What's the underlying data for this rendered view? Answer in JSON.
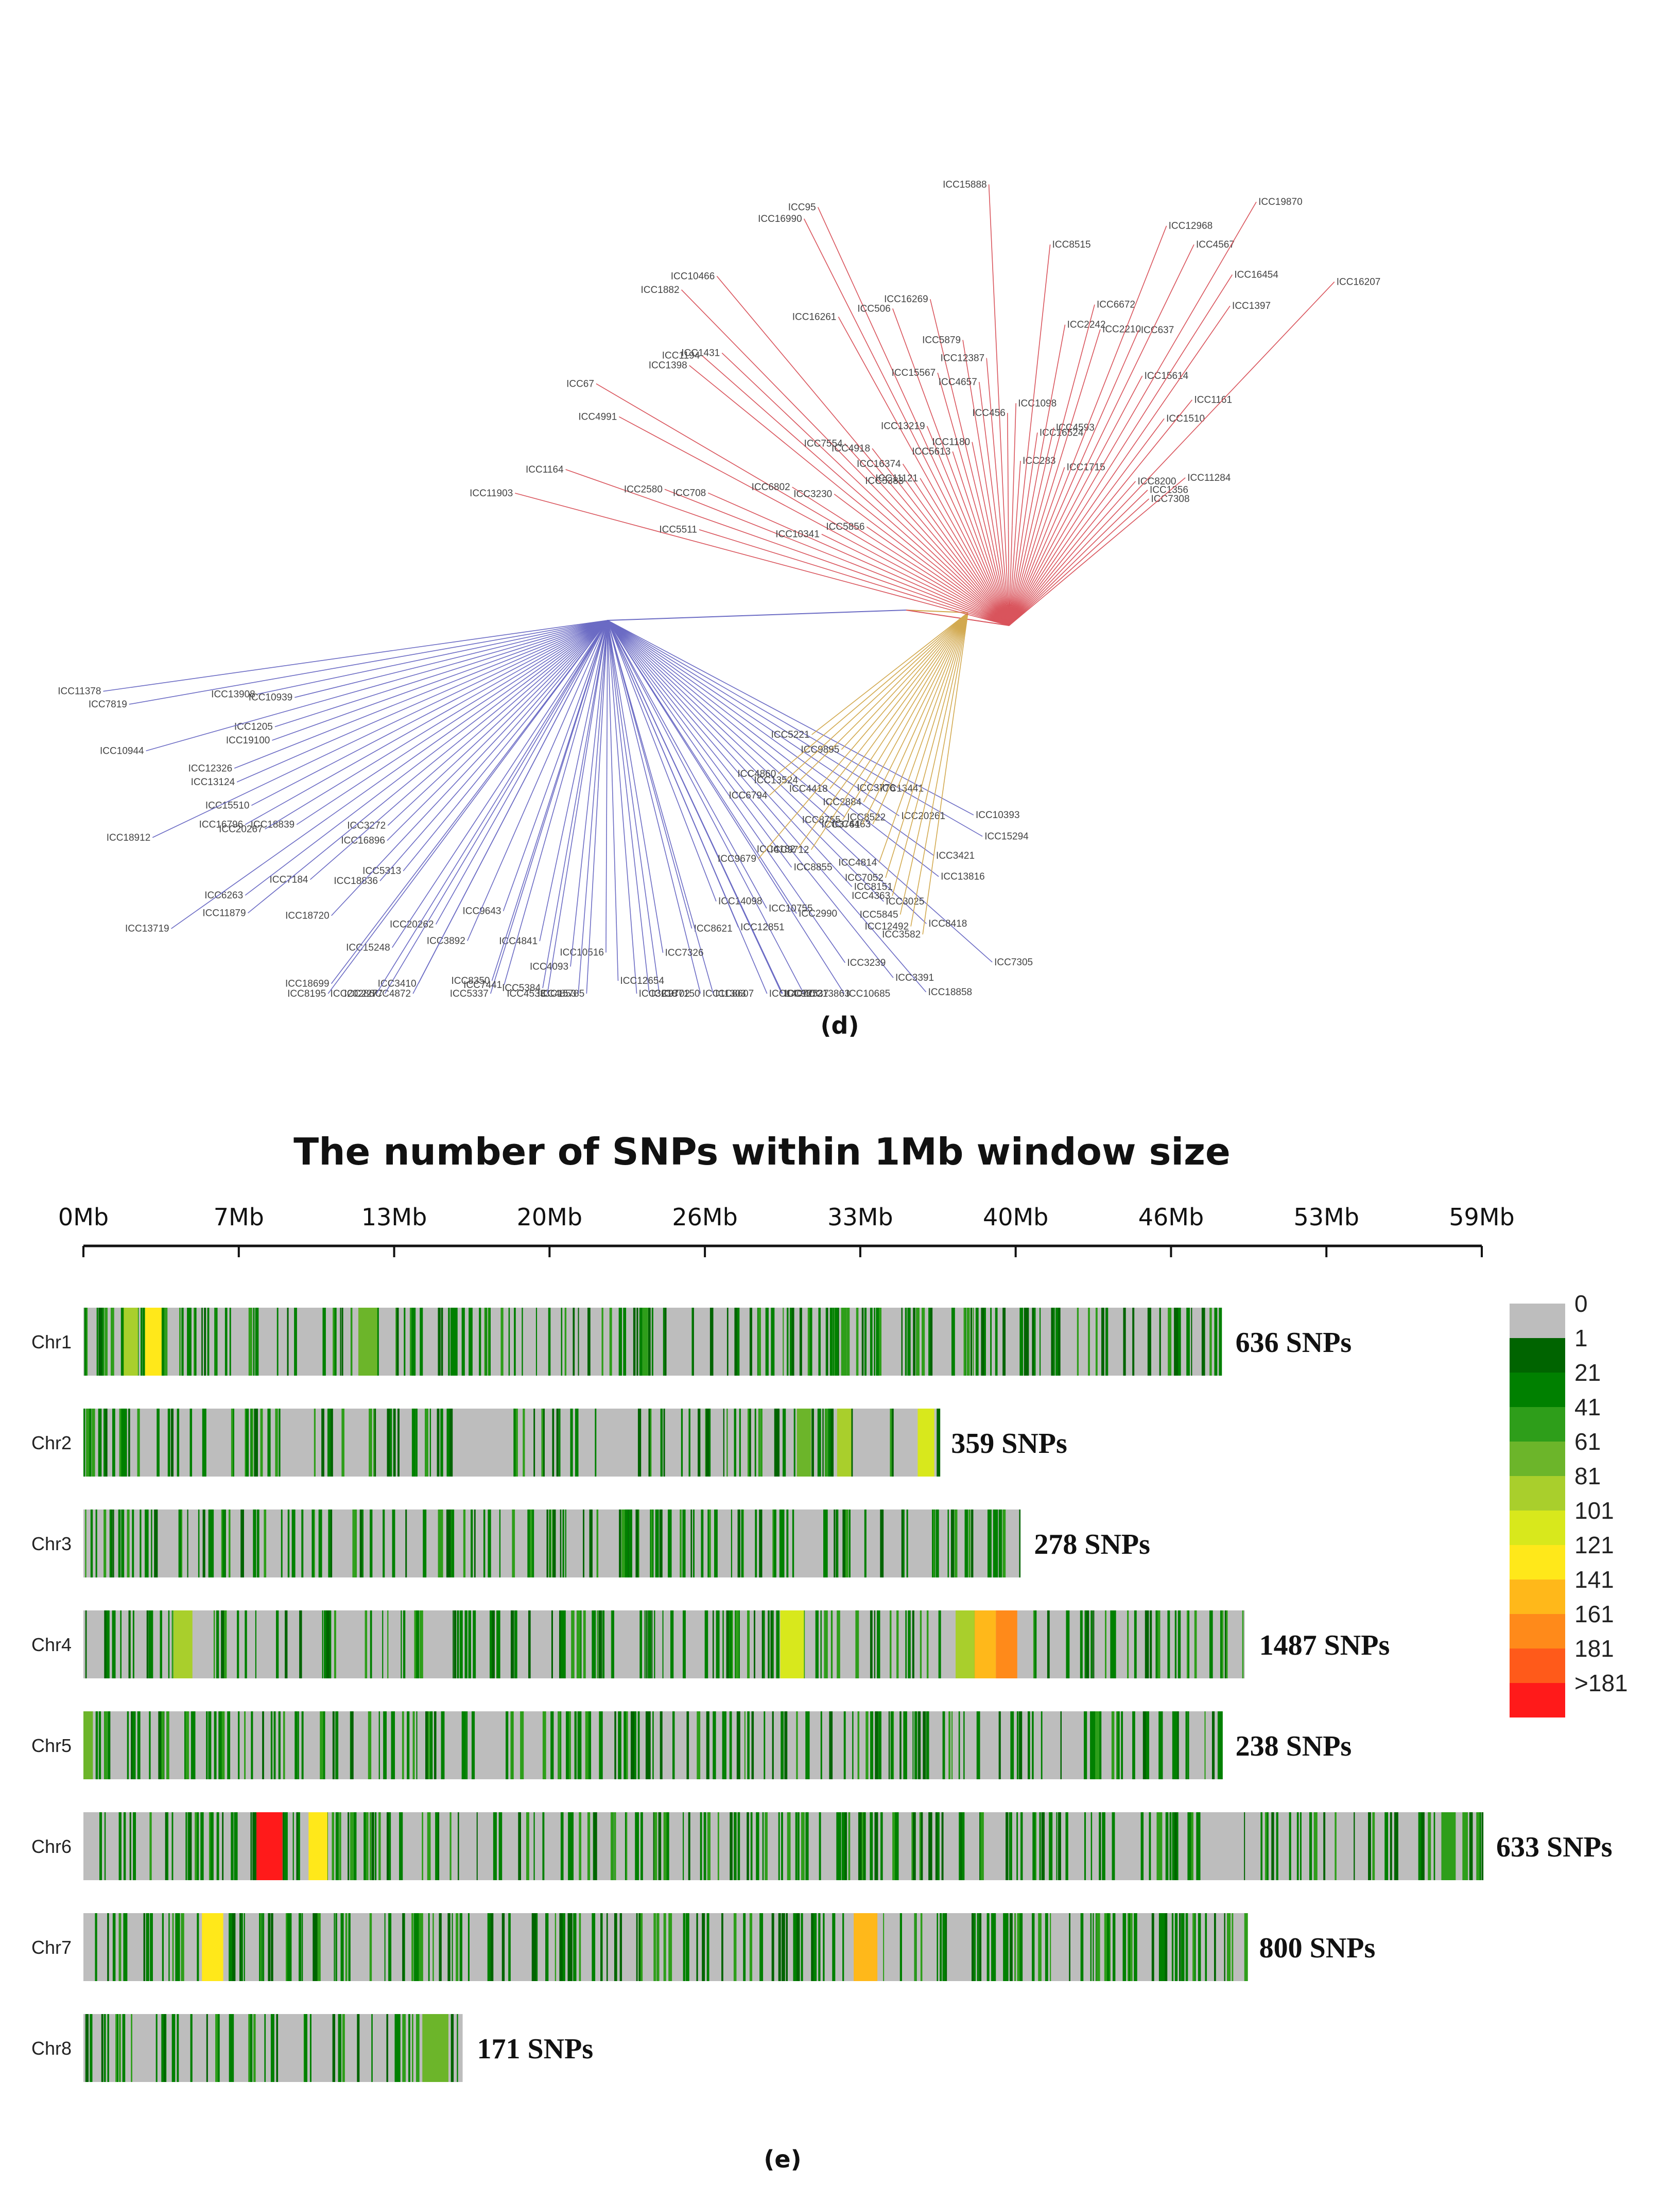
{
  "tree": {
    "panel_label": "(d)",
    "clades": [
      {
        "color": "#6b6bc4",
        "labels": [
          "ICC10393",
          "ICC15294",
          "ICC13441",
          "ICC20261",
          "ICC3421",
          "ICC13816",
          "ICC8522",
          "ICC7305",
          "ICC8418",
          "ICC3025",
          "ICC8151",
          "ICC18858",
          "ICC3391",
          "ICC8855",
          "ICC3239",
          "ICC2990",
          "ICC10685",
          "ICC10755",
          "ICC13863",
          "ICC12537",
          "ICC12851",
          "ICC14098",
          "ICC9872",
          "ICC14077",
          "ICC8621",
          "ICC11303",
          "ICC8607",
          "ICC7326",
          "ICC7150",
          "ICC9702",
          "ICC3218",
          "ICC12654",
          "ICC10516",
          "ICC15785",
          "ICC4853",
          "ICC4093",
          "ICC4533",
          "ICC5384",
          "ICC4841",
          "ICC5337",
          "ICC7441",
          "ICC8350",
          "ICC9643",
          "ICC4872",
          "ICC3892",
          "ICC2277",
          "ICC3410",
          "ICC20262",
          "ICC20286",
          "ICC15248",
          "ICC8195",
          "ICC18699",
          "ICC5313",
          "ICC18836",
          "ICC18720",
          "ICC16896",
          "ICC3272",
          "ICC7184",
          "ICC11879",
          "ICC6263",
          "ICC13719",
          "ICC18839",
          "ICC20267",
          "ICC16796",
          "ICC15510",
          "ICC18912",
          "ICC13124",
          "ICC12326",
          "ICC19100",
          "ICC1205",
          "ICC10944",
          "ICC10939",
          "ICC13908",
          "ICC7819",
          "ICC11378"
        ]
      },
      {
        "color": "#d2a94f",
        "labels": [
          "ICC3582",
          "ICC12492",
          "ICC5845",
          "ICC4363",
          "ICC7052",
          "ICC4814",
          "ICC3776",
          "ICC4463",
          "ICC3761",
          "ICC2884",
          "ICC8755",
          "ICC9712",
          "ICC4182",
          "ICC4418",
          "ICC9679",
          "ICC9895",
          "ICC13524",
          "ICC6794",
          "ICC4860",
          "ICC5221"
        ]
      },
      {
        "color": "#d9545c",
        "labels": [
          "ICC11903",
          "ICC5511",
          "ICC1164",
          "ICC2580",
          "ICC708",
          "ICC10341",
          "ICC4991",
          "ICC67",
          "ICC6802",
          "ICC5856",
          "ICC3230",
          "ICC1398",
          "ICC1194",
          "ICC1431",
          "ICC1882",
          "ICC7554",
          "ICC10466",
          "ICC4918",
          "ICC5383",
          "ICC16374",
          "ICC11121",
          "ICC16261",
          "ICC16990",
          "ICC95",
          "ICC13219",
          "ICC506",
          "ICC5613",
          "ICC15567",
          "ICC16269",
          "ICC1180",
          "ICC5879",
          "ICC4657",
          "ICC12387",
          "ICC15888",
          "ICC456",
          "ICC1098",
          "ICC283",
          "ICC8515",
          "ICC16524",
          "ICC2242",
          "ICC4593",
          "ICC6672",
          "ICC2210",
          "ICC1715",
          "ICC12968",
          "ICC637",
          "ICC4567",
          "ICC15614",
          "ICC19870",
          "ICC16454",
          "ICC1397",
          "ICC1510",
          "ICC1161",
          "ICC8200",
          "ICC16207",
          "ICC1356",
          "ICC7308",
          "ICC11284"
        ]
      }
    ]
  },
  "heatmap": {
    "panel_label": "(e)",
    "title": "The number of SNPs within 1Mb window size",
    "axis_ticks": [
      "0Mb",
      "7Mb",
      "13Mb",
      "20Mb",
      "26Mb",
      "33Mb",
      "40Mb",
      "46Mb",
      "53Mb",
      "59Mb"
    ],
    "legend": {
      "labels": [
        "0",
        "1",
        "21",
        "41",
        "61",
        "81",
        "101",
        "121",
        "141",
        "161",
        "181",
        ">181"
      ],
      "colors": [
        "#bdbdbd",
        "#006400",
        "#008000",
        "#2e9e1a",
        "#6cb52a",
        "#a9cf2c",
        "#d8e81c",
        "#ffe81a",
        "#ffb81a",
        "#ff8a1a",
        "#ff5a1a",
        "#ff1a1a"
      ]
    }
  },
  "chart_data": [
    {
      "type": "tree",
      "panel": "(d)",
      "title": "",
      "groups": [
        {
          "color": "blue",
          "taxa_count": 75
        },
        {
          "color": "yellow",
          "taxa_count": 20
        },
        {
          "color": "red",
          "taxa_count": 58
        }
      ]
    },
    {
      "type": "heatmap",
      "panel": "(e)",
      "title": "The number of SNPs within 1Mb window size",
      "x_axis_ticks": [
        "0Mb",
        "7Mb",
        "13Mb",
        "20Mb",
        "26Mb",
        "33Mb",
        "40Mb",
        "46Mb",
        "53Mb",
        "59Mb"
      ],
      "xlim_mb": [
        0,
        59
      ],
      "color_scale": [
        "0",
        "1",
        "21",
        "41",
        "61",
        "81",
        "101",
        "121",
        "141",
        "161",
        "181",
        ">181"
      ],
      "chromosomes": [
        {
          "name": "Chr1",
          "length_mb": 48,
          "total": "636 SNPs",
          "hotspots": [
            {
              "start_mb": 1.7,
              "end_mb": 2.3,
              "level": "81"
            },
            {
              "start_mb": 2.6,
              "end_mb": 3.3,
              "level": "121"
            },
            {
              "start_mb": 11.6,
              "end_mb": 12.4,
              "level": "61"
            }
          ]
        },
        {
          "name": "Chr2",
          "length_mb": 36,
          "total": "359 SNPs",
          "hotspots": [
            {
              "start_mb": 30.1,
              "end_mb": 30.7,
              "level": "61"
            },
            {
              "start_mb": 31.8,
              "end_mb": 32.4,
              "level": "81"
            },
            {
              "start_mb": 35.2,
              "end_mb": 35.9,
              "level": "101"
            }
          ]
        },
        {
          "name": "Chr3",
          "length_mb": 39.5,
          "total": "278 SNPs",
          "hotspots": []
        },
        {
          "name": "Chr4",
          "length_mb": 49,
          "total": "1487 SNPs",
          "hotspots": [
            {
              "start_mb": 3.8,
              "end_mb": 4.6,
              "level": "81"
            },
            {
              "start_mb": 29.4,
              "end_mb": 30.4,
              "level": "101"
            },
            {
              "start_mb": 36.8,
              "end_mb": 37.6,
              "level": "81"
            },
            {
              "start_mb": 37.6,
              "end_mb": 38.5,
              "level": "141"
            },
            {
              "start_mb": 38.5,
              "end_mb": 39.4,
              "level": "161"
            }
          ]
        },
        {
          "name": "Chr5",
          "length_mb": 48,
          "total": "238 SNPs",
          "hotspots": [
            {
              "start_mb": 0.0,
              "end_mb": 0.4,
              "level": "61"
            }
          ]
        },
        {
          "name": "Chr6",
          "length_mb": 59,
          "total": "633 SNPs",
          "hotspots": [
            {
              "start_mb": 7.3,
              "end_mb": 8.4,
              "level": ">181"
            },
            {
              "start_mb": 9.5,
              "end_mb": 10.3,
              "level": "121"
            },
            {
              "start_mb": 57.3,
              "end_mb": 57.9,
              "level": "41"
            }
          ]
        },
        {
          "name": "Chr7",
          "length_mb": 49,
          "total": "800 SNPs",
          "hotspots": [
            {
              "start_mb": 5.0,
              "end_mb": 5.9,
              "level": "121"
            },
            {
              "start_mb": 32.5,
              "end_mb": 33.5,
              "level": "141"
            }
          ]
        },
        {
          "name": "Chr8",
          "length_mb": 16,
          "total": "171 SNPs",
          "hotspots": [
            {
              "start_mb": 14.3,
              "end_mb": 15.4,
              "level": "61"
            }
          ]
        }
      ]
    }
  ]
}
